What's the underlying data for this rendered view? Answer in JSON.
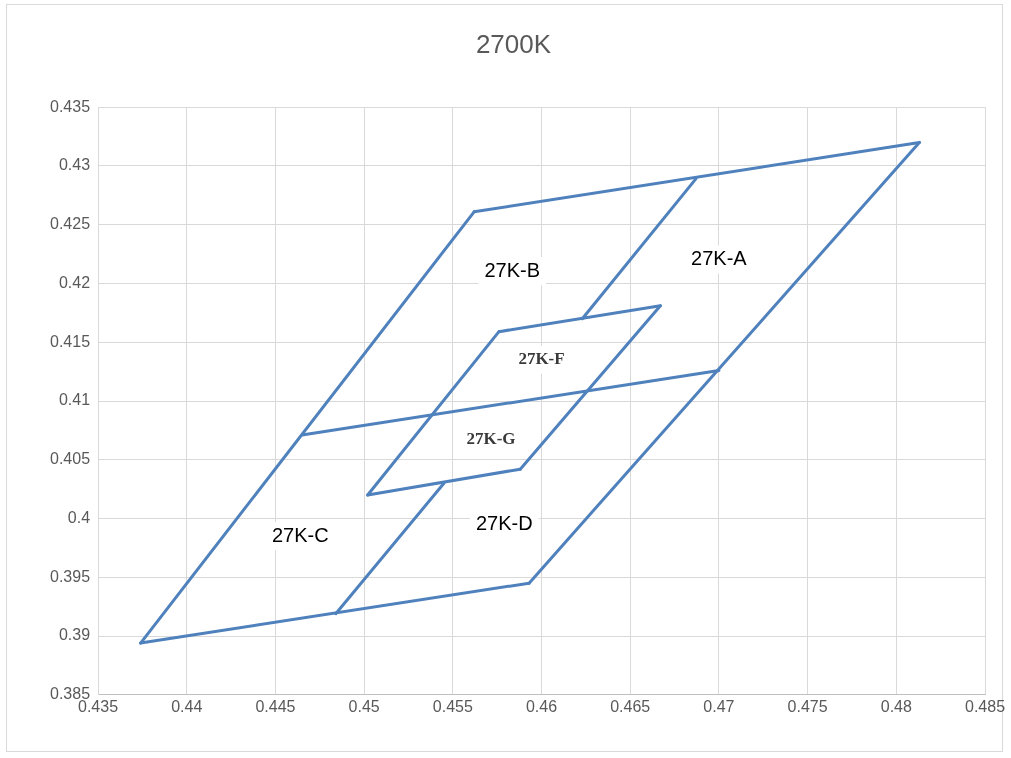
{
  "chart_data": {
    "type": "line",
    "title": "2700K",
    "marker": "none",
    "line_style": "solid",
    "grid": true,
    "legend": false,
    "xlim": [
      0.435,
      0.485
    ],
    "xticks": [
      0.435,
      0.44,
      0.445,
      0.45,
      0.455,
      0.46,
      0.465,
      0.47,
      0.475,
      0.48,
      0.485
    ],
    "ylim": [
      0.385,
      0.435
    ],
    "yticks": [
      0.385,
      0.39,
      0.395,
      0.4,
      0.405,
      0.41,
      0.415,
      0.42,
      0.425,
      0.43,
      0.435
    ],
    "series": [
      {
        "color": "#4f81bd",
        "x": [
          0.4374,
          0.4562
        ],
        "values": [
          0.3894,
          0.4261
        ]
      },
      {
        "color": "#4f81bd",
        "x": [
          0.4562,
          0.4813
        ],
        "values": [
          0.4261,
          0.432
        ]
      },
      {
        "color": "#4f81bd",
        "x": [
          0.4593,
          0.4813
        ],
        "values": [
          0.3945,
          0.432
        ]
      },
      {
        "color": "#4f81bd",
        "x": [
          0.4374,
          0.4593
        ],
        "values": [
          0.3894,
          0.3945
        ]
      },
      {
        "color": "#4f81bd",
        "x": [
          0.4623,
          0.4687
        ],
        "values": [
          0.417,
          0.4289
        ]
      },
      {
        "color": "#4f81bd",
        "x": [
          0.4484,
          0.4545
        ],
        "values": [
          0.3919,
          0.403
        ]
      },
      {
        "color": "#4f81bd",
        "x": [
          0.4465,
          0.47
        ],
        "values": [
          0.4071,
          0.4126
        ]
      },
      {
        "color": "#4f81bd",
        "x": [
          0.4502,
          0.4576
        ],
        "values": [
          0.402,
          0.4159
        ]
      },
      {
        "color": "#4f81bd",
        "x": [
          0.4576,
          0.4667
        ],
        "values": [
          0.4159,
          0.4181
        ]
      },
      {
        "color": "#4f81bd",
        "x": [
          0.4588,
          0.4667
        ],
        "values": [
          0.4042,
          0.4181
        ]
      },
      {
        "color": "#4f81bd",
        "x": [
          0.4502,
          0.4588
        ],
        "values": [
          0.402,
          0.4042
        ]
      }
    ],
    "annotations": [
      "27K-A",
      "27K-B",
      "27K-C",
      "27K-D",
      "27K-F",
      "27K-G"
    ]
  }
}
